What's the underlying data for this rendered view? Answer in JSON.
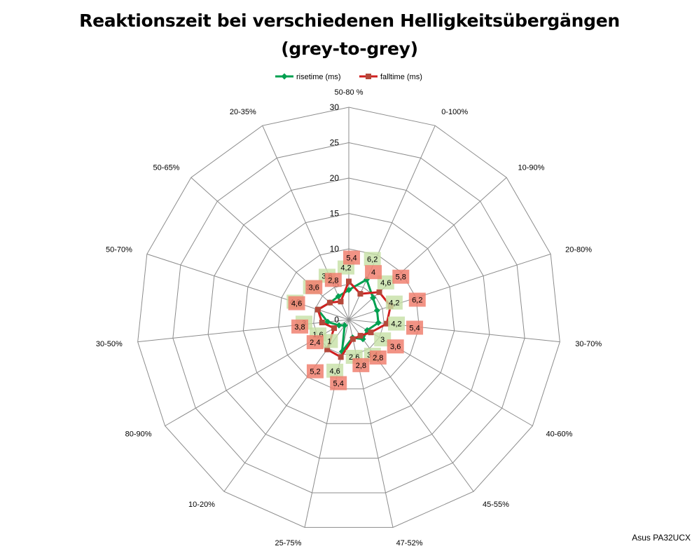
{
  "chart_data": {
    "type": "radar",
    "title_line1": "Reaktionszeit bei verschiedenen Helligkeitsübergängen",
    "title_line2": "(grey-to-grey)",
    "categories": [
      "50-80 %",
      "0-100%",
      "10-90%",
      "20-80%",
      "30-70%",
      "40-60%",
      "45-55%",
      "47-52%",
      "25-75%",
      "10-20%",
      "80-90%",
      "30-50%",
      "50-70%",
      "50-65%",
      "20-35%"
    ],
    "rlim": [
      0,
      30
    ],
    "ticks": [
      "0",
      "5",
      "10",
      "15",
      "20",
      "25",
      "30"
    ],
    "series": [
      {
        "name": "risetime (ms)",
        "color": "#00A050",
        "marker": "diamond",
        "label_bg": "#C5E0A5",
        "values": [
          4.2,
          6.2,
          4.6,
          4.2,
          4.2,
          3,
          3.4,
          2.6,
          4.6,
          1,
          1.6,
          3,
          4.6,
          3.6,
          3.6
        ]
      },
      {
        "name": "falltime (ms)",
        "color": "#D02020",
        "marker": "square",
        "label_bg": "#F08070",
        "values": [
          5.4,
          4,
          5.8,
          6.2,
          5.4,
          3.6,
          2.8,
          2.8,
          5.4,
          5.2,
          2.4,
          3.8,
          4.6,
          3.6,
          2.8
        ]
      }
    ],
    "legend_position": "top",
    "grid": true
  },
  "footer": {
    "brand": "Asus PA32UCX"
  }
}
